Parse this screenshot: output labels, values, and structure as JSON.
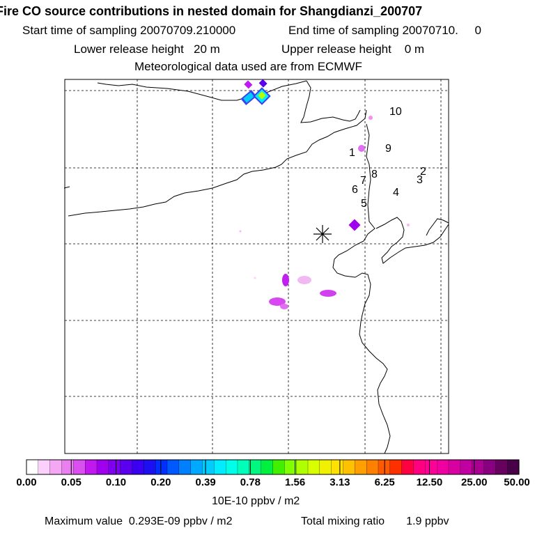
{
  "header": {
    "title": "Fire CO source contributions in nested domain for Shangdianzi_200707",
    "start": "Start time of sampling 20070709.210000",
    "end": "End time of sampling 20070710.     0",
    "lower": "Lower release height   20 m",
    "upper": "Upper release height    0 m",
    "met": "Meteorological data used are from ECMWF"
  },
  "chart_data": {
    "type": "heatmap",
    "title": "Fire CO source contributions in nested domain for Shangdianzi_200707",
    "receptor": "Shangdianzi",
    "colorbar": {
      "ticks": [
        "0.00",
        "0.05",
        "0.10",
        "0.20",
        "0.39",
        "0.78",
        "1.56",
        "3.13",
        "6.25",
        "12.50",
        "25.00",
        "50.00"
      ],
      "units": "10E-10 ppbv / m2",
      "colors": [
        "#ffffff",
        "#fbd0fb",
        "#f4a8f4",
        "#ea80f0",
        "#d94ff0",
        "#c218f0",
        "#a000ee",
        "#7d00ee",
        "#5a00ee",
        "#3a00f0",
        "#1c10f0",
        "#0030ff",
        "#0058ff",
        "#0080ff",
        "#00a8ff",
        "#00ccff",
        "#00ecff",
        "#00ffe8",
        "#00ffb8",
        "#00f880",
        "#00f040",
        "#40f000",
        "#80ff00",
        "#b0ff00",
        "#d8ff00",
        "#f0f000",
        "#ffe000",
        "#ffc000",
        "#ffa000",
        "#ff8000",
        "#ff5a00",
        "#ff3000",
        "#ff0040",
        "#ff0080",
        "#ff0098",
        "#f000a0",
        "#d800a0",
        "#c000a0",
        "#a80090",
        "#880080",
        "#680060",
        "#480048"
      ]
    },
    "labels": [
      "1",
      "2",
      "3",
      "4",
      "5",
      "6",
      "7",
      "8",
      "9",
      "10"
    ],
    "footer": {
      "max": "Maximum value  0.293E-09 ppbv / m2",
      "total": "Total mixing ratio       1.9 ppbv"
    }
  }
}
